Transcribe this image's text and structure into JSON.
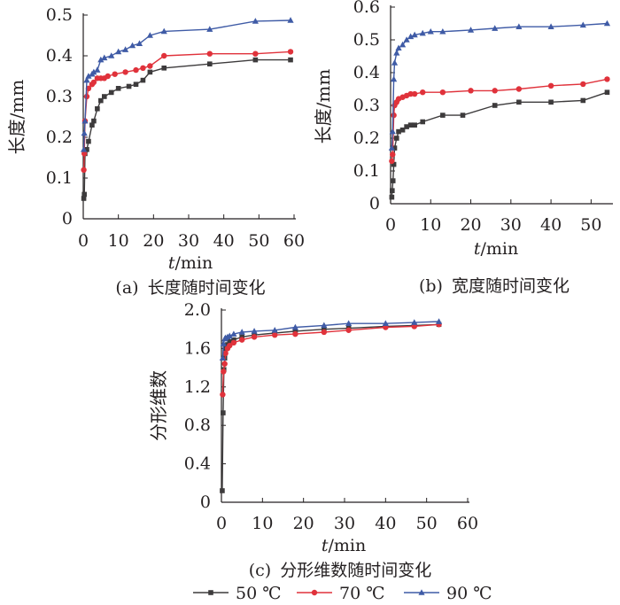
{
  "series_style": [
    {
      "name": "50 ℃",
      "color": "#3d3b3c",
      "marker": "square"
    },
    {
      "name": "70 ℃",
      "color": "#e0323b",
      "marker": "circle"
    },
    {
      "name": "90 ℃",
      "color": "#3f5ba6",
      "marker": "triangle"
    }
  ],
  "legend": {
    "entries": [
      "50 ℃",
      "70 ℃",
      "90 ℃"
    ],
    "placement": "bottom-center"
  },
  "chart_data": [
    {
      "type": "line",
      "caption_label": "(a)",
      "caption_text": "长度随时间变化",
      "xlabel_italic": "t",
      "xlabel_unit": "/min",
      "ylabel": "长度/mm",
      "xlim": [
        0,
        60
      ],
      "ylim": [
        0,
        0.5
      ],
      "xticks": [
        "0",
        "10",
        "20",
        "30",
        "40",
        "50",
        "60"
      ],
      "yticks": [
        "0",
        "0.1",
        "0.2",
        "0.3",
        "0.4",
        "0.5"
      ],
      "grid": false,
      "series": [
        {
          "name": "50 ℃",
          "points": [
            [
              0.15,
              0.05
            ],
            [
              0.3,
              0.06
            ],
            [
              0.5,
              0.16
            ],
            [
              1,
              0.17
            ],
            [
              1.5,
              0.19
            ],
            [
              2.5,
              0.23
            ],
            [
              3,
              0.24
            ],
            [
              4,
              0.27
            ],
            [
              5,
              0.29
            ],
            [
              6,
              0.3
            ],
            [
              8,
              0.31
            ],
            [
              10,
              0.32
            ],
            [
              13,
              0.325
            ],
            [
              15,
              0.33
            ],
            [
              17,
              0.34
            ],
            [
              19,
              0.36
            ],
            [
              23,
              0.37
            ],
            [
              36,
              0.38
            ],
            [
              49,
              0.39
            ],
            [
              59,
              0.39
            ]
          ]
        },
        {
          "name": "70 ℃",
          "points": [
            [
              0.15,
              0.12
            ],
            [
              0.3,
              0.16
            ],
            [
              0.5,
              0.24
            ],
            [
              1,
              0.3
            ],
            [
              1.5,
              0.32
            ],
            [
              2.5,
              0.33
            ],
            [
              3,
              0.335
            ],
            [
              4,
              0.345
            ],
            [
              5,
              0.345
            ],
            [
              6,
              0.345
            ],
            [
              7,
              0.35
            ],
            [
              9,
              0.355
            ],
            [
              12,
              0.36
            ],
            [
              15,
              0.365
            ],
            [
              17,
              0.37
            ],
            [
              19,
              0.375
            ],
            [
              23,
              0.4
            ],
            [
              36,
              0.405
            ],
            [
              49,
              0.405
            ],
            [
              59,
              0.41
            ]
          ]
        },
        {
          "name": "90 ℃",
          "points": [
            [
              0.15,
              0.17
            ],
            [
              0.3,
              0.21
            ],
            [
              0.5,
              0.24
            ],
            [
              1,
              0.34
            ],
            [
              1.5,
              0.35
            ],
            [
              2.5,
              0.355
            ],
            [
              3,
              0.36
            ],
            [
              4,
              0.365
            ],
            [
              5,
              0.39
            ],
            [
              6,
              0.395
            ],
            [
              8,
              0.4
            ],
            [
              10,
              0.41
            ],
            [
              12,
              0.415
            ],
            [
              14,
              0.425
            ],
            [
              16,
              0.43
            ],
            [
              19,
              0.45
            ],
            [
              23,
              0.46
            ],
            [
              36,
              0.465
            ],
            [
              49,
              0.485
            ],
            [
              59,
              0.487
            ]
          ]
        }
      ]
    },
    {
      "type": "line",
      "caption_label": "(b)",
      "caption_text": "宽度随时间变化",
      "xlabel_italic": "t",
      "xlabel_unit": "/min",
      "ylabel": "长度/mm",
      "xlim": [
        0,
        55
      ],
      "ylim": [
        0,
        0.6
      ],
      "xticks": [
        "0",
        "10",
        "20",
        "30",
        "40",
        "50"
      ],
      "yticks": [
        "0",
        "0.1",
        "0.2",
        "0.3",
        "0.4",
        "0.5",
        "0.6"
      ],
      "grid": false,
      "series": [
        {
          "name": "50 ℃",
          "points": [
            [
              0.3,
              0.02
            ],
            [
              0.4,
              0.04
            ],
            [
              0.6,
              0.07
            ],
            [
              0.8,
              0.12
            ],
            [
              1,
              0.17
            ],
            [
              1.5,
              0.2
            ],
            [
              2,
              0.22
            ],
            [
              3,
              0.225
            ],
            [
              4,
              0.235
            ],
            [
              5,
              0.24
            ],
            [
              6,
              0.24
            ],
            [
              8,
              0.25
            ],
            [
              13,
              0.27
            ],
            [
              18,
              0.27
            ],
            [
              26,
              0.3
            ],
            [
              32,
              0.31
            ],
            [
              40,
              0.31
            ],
            [
              48,
              0.315
            ],
            [
              54,
              0.34
            ]
          ]
        },
        {
          "name": "70 ℃",
          "points": [
            [
              0.3,
              0.13
            ],
            [
              0.5,
              0.15
            ],
            [
              0.8,
              0.27
            ],
            [
              1,
              0.3
            ],
            [
              1.5,
              0.31
            ],
            [
              2,
              0.32
            ],
            [
              3,
              0.325
            ],
            [
              4,
              0.33
            ],
            [
              5,
              0.335
            ],
            [
              6,
              0.335
            ],
            [
              8,
              0.34
            ],
            [
              13,
              0.34
            ],
            [
              20,
              0.345
            ],
            [
              26,
              0.345
            ],
            [
              32,
              0.35
            ],
            [
              40,
              0.36
            ],
            [
              48,
              0.365
            ],
            [
              54,
              0.38
            ]
          ]
        },
        {
          "name": "90 ℃",
          "points": [
            [
              0.3,
              0.17
            ],
            [
              0.5,
              0.22
            ],
            [
              0.8,
              0.38
            ],
            [
              1,
              0.43
            ],
            [
              1.5,
              0.46
            ],
            [
              2,
              0.475
            ],
            [
              3,
              0.485
            ],
            [
              4,
              0.5
            ],
            [
              5,
              0.51
            ],
            [
              6,
              0.515
            ],
            [
              8,
              0.52
            ],
            [
              10,
              0.525
            ],
            [
              13,
              0.525
            ],
            [
              20,
              0.53
            ],
            [
              26,
              0.535
            ],
            [
              32,
              0.54
            ],
            [
              40,
              0.54
            ],
            [
              48,
              0.545
            ],
            [
              54,
              0.55
            ]
          ]
        }
      ]
    },
    {
      "type": "line",
      "caption_label": "(c)",
      "caption_text": "分形维数随时间变化",
      "xlabel_italic": "t",
      "xlabel_unit": "/min",
      "ylabel": "分形维数",
      "xlim": [
        0,
        60
      ],
      "ylim": [
        0,
        2.0
      ],
      "xticks": [
        "0",
        "10",
        "20",
        "30",
        "40",
        "50",
        "60"
      ],
      "yticks": [
        "0",
        "0.4",
        "0.8",
        "1.2",
        "1.6",
        "2.0"
      ],
      "grid": false,
      "series": [
        {
          "name": "50 ℃",
          "points": [
            [
              0.2,
              0.12
            ],
            [
              0.4,
              0.93
            ],
            [
              0.6,
              1.38
            ],
            [
              0.8,
              1.5
            ],
            [
              1,
              1.6
            ],
            [
              1.5,
              1.64
            ],
            [
              2,
              1.67
            ],
            [
              3,
              1.69
            ],
            [
              5,
              1.72
            ],
            [
              8,
              1.74
            ],
            [
              13,
              1.76
            ],
            [
              18,
              1.78
            ],
            [
              25,
              1.8
            ],
            [
              31,
              1.81
            ],
            [
              40,
              1.83
            ],
            [
              47,
              1.84
            ],
            [
              53,
              1.85
            ]
          ]
        },
        {
          "name": "70 ℃",
          "points": [
            [
              0.3,
              1.12
            ],
            [
              0.5,
              1.36
            ],
            [
              0.8,
              1.44
            ],
            [
              1,
              1.55
            ],
            [
              1.5,
              1.6
            ],
            [
              2,
              1.63
            ],
            [
              3,
              1.66
            ],
            [
              5,
              1.69
            ],
            [
              8,
              1.72
            ],
            [
              13,
              1.74
            ],
            [
              18,
              1.75
            ],
            [
              25,
              1.77
            ],
            [
              31,
              1.79
            ],
            [
              40,
              1.82
            ],
            [
              47,
              1.83
            ],
            [
              53,
              1.85
            ]
          ]
        },
        {
          "name": "90 ℃",
          "points": [
            [
              0.3,
              1.5
            ],
            [
              0.5,
              1.65
            ],
            [
              0.8,
              1.7
            ],
            [
              1,
              1.71
            ],
            [
              1.5,
              1.72
            ],
            [
              2,
              1.73
            ],
            [
              3,
              1.75
            ],
            [
              5,
              1.77
            ],
            [
              8,
              1.78
            ],
            [
              13,
              1.79
            ],
            [
              18,
              1.82
            ],
            [
              25,
              1.84
            ],
            [
              31,
              1.86
            ],
            [
              40,
              1.86
            ],
            [
              47,
              1.87
            ],
            [
              53,
              1.88
            ]
          ]
        }
      ]
    }
  ]
}
